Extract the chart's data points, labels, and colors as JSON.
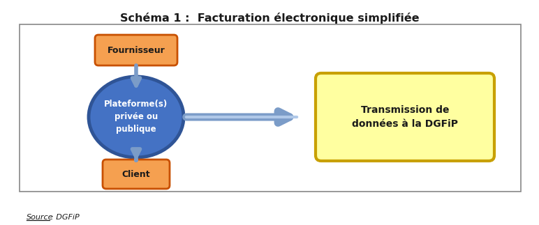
{
  "title": "Schéma 1 :  Facturation électronique simplifiée",
  "title_fontsize": 11.5,
  "title_fontweight": "bold",
  "source_text": "Source : DGFiP",
  "fournisseur_label": "Fournisseur",
  "platform_label": "Plateforme(s)\nprivée ou\npublique",
  "client_label": "Client",
  "dgfip_label": "Transmission de\ndonnées à la DGFiP",
  "orange_fill": "#F5A050",
  "orange_border": "#C85000",
  "blue_fill": "#4472C4",
  "blue_dark": "#2F5496",
  "yellow_fill": "#FFFFA0",
  "yellow_border": "#C8A000",
  "arrow_color": "#7B9CC8",
  "text_color": "#1A1A1A",
  "background": "#FFFFFF",
  "border_color": "#888888"
}
